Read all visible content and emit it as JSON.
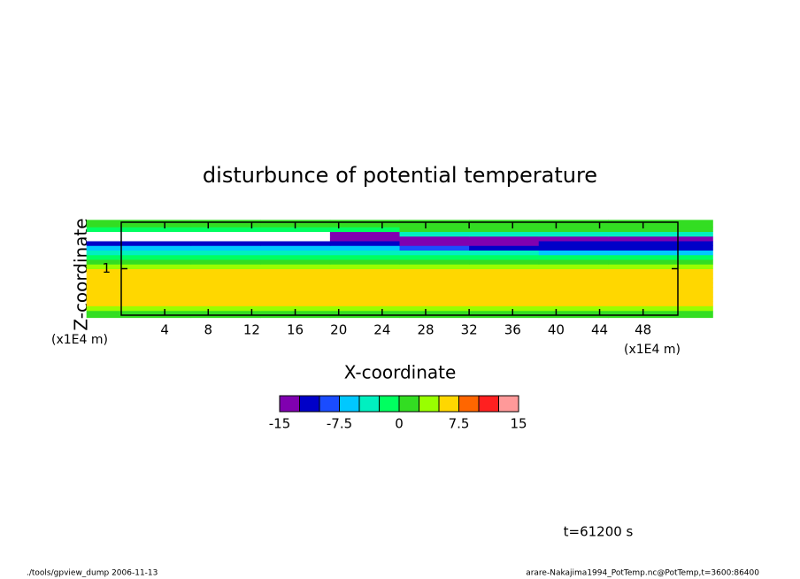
{
  "chart_data": {
    "type": "contour",
    "title": "disturbunce of potential temperature",
    "x_label": "X-coordinate",
    "y_label": "Z-coordinate",
    "x_unit": "(x1E4 m)",
    "y_unit": "(x1E4 m)",
    "annotation": "t=61200 s",
    "footer_left": "./tools/gpview_dump  2006-11-13",
    "footer_right": "arare-Nakajima1994_PotTemp.nc@PotTemp,t=3600:86400",
    "xlim": [
      0,
      51.2
    ],
    "ylim": [
      0,
      2
    ],
    "xticks": [
      4,
      8,
      12,
      16,
      20,
      24,
      28,
      32,
      36,
      40,
      44,
      48
    ],
    "yticks": [
      1
    ],
    "x": [
      3.2,
      9.6,
      16,
      22.4,
      28.8,
      35.2,
      41.6,
      48
    ],
    "y": [
      0.05,
      0.15,
      0.25,
      0.35,
      0.45,
      0.55,
      0.65,
      0.75,
      0.85,
      0.95,
      1.05,
      1.15,
      1.25,
      1.35,
      1.45,
      1.55,
      1.65,
      1.75,
      1.85,
      1.95
    ],
    "z": [
      [
        1,
        1,
        1,
        1,
        1,
        1,
        1,
        1
      ],
      [
        4,
        4,
        4,
        4,
        4,
        4,
        4,
        4
      ],
      [
        6,
        6,
        6,
        6,
        6,
        6,
        6,
        6
      ],
      [
        6,
        6,
        6,
        6,
        6,
        6,
        6,
        6
      ],
      [
        6,
        6,
        6,
        6,
        6,
        6,
        6,
        6
      ],
      [
        6,
        6,
        6,
        6,
        6,
        6,
        6,
        6
      ],
      [
        6,
        6,
        6,
        6,
        6,
        6,
        6,
        6
      ],
      [
        6,
        6,
        6,
        6,
        6,
        6,
        6,
        6
      ],
      [
        6,
        6,
        6,
        6,
        6,
        6,
        6,
        6
      ],
      [
        6,
        6,
        6,
        6,
        6,
        6,
        6,
        6
      ],
      [
        4,
        4,
        4,
        4,
        4,
        4,
        4,
        4
      ],
      [
        1,
        1,
        1,
        1,
        1,
        1,
        1,
        1
      ],
      [
        -1,
        -1,
        -1,
        -1,
        -1,
        -1,
        -1,
        -1
      ],
      [
        -4,
        -4,
        -4,
        -4,
        -4,
        -4,
        -6,
        -6
      ],
      [
        -6,
        -6,
        -6,
        -6,
        -8,
        -11,
        -11,
        -11
      ],
      [
        -11,
        -11,
        -11,
        -11,
        -13,
        -13,
        -12,
        -12
      ],
      [
        -16,
        -16,
        -16,
        -14,
        -13,
        -14,
        -13,
        -13
      ],
      [
        -16,
        -16,
        -16,
        -13,
        -3,
        -3,
        -3,
        -3
      ],
      [
        -1,
        -1,
        -1,
        -1,
        1,
        1,
        1,
        1
      ],
      [
        1,
        1,
        1,
        1,
        1,
        1,
        1,
        1
      ]
    ],
    "levels": [
      -15,
      -12.5,
      -10,
      -7.5,
      -5,
      -2.5,
      0,
      2.5,
      5,
      7.5,
      10,
      12.5,
      15
    ],
    "colors": [
      "#8000b0",
      "#0000c8",
      "#1a4cff",
      "#00c8ff",
      "#00f0c0",
      "#00ff60",
      "#33dd22",
      "#99ff00",
      "#ffd700",
      "#ff6600",
      "#ff2020",
      "#ff9999"
    ],
    "colorbar_ticks": [
      -15,
      -7.5,
      0,
      7.5,
      15
    ]
  }
}
